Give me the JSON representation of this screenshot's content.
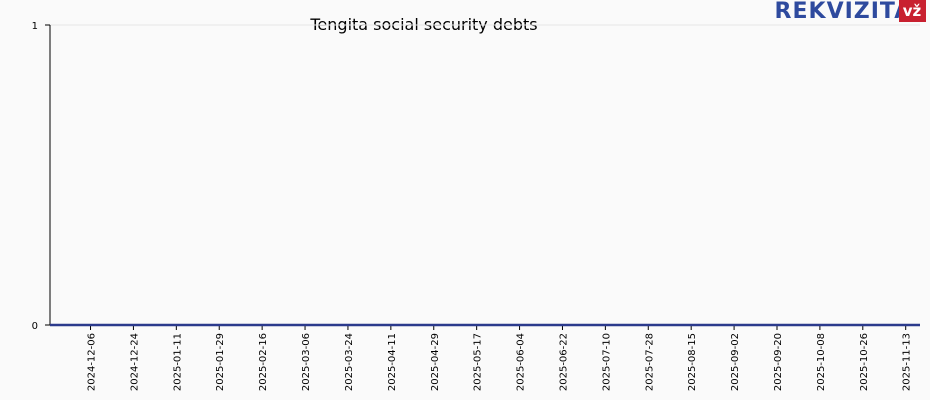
{
  "chart_data": {
    "type": "line",
    "title": "Tengita social security debts",
    "x": [
      "2024-11-19",
      "2025-11-19"
    ],
    "series": [
      {
        "color": "#2b3a8c",
        "values": [
          0,
          0
        ]
      }
    ],
    "xlim": [
      "2024-11-19",
      "2025-11-19"
    ],
    "xticks": [
      "2024-12-06",
      "2024-12-24",
      "2025-01-11",
      "2025-01-29",
      "2025-02-16",
      "2025-03-06",
      "2025-03-24",
      "2025-04-11",
      "2025-04-29",
      "2025-05-17",
      "2025-06-04",
      "2025-06-22",
      "2025-07-10",
      "2025-07-28",
      "2025-08-15",
      "2025-09-02",
      "2025-09-20",
      "2025-10-08",
      "2025-10-26",
      "2025-11-13"
    ],
    "ylim": [
      0,
      1
    ],
    "yticks": [
      0,
      1
    ],
    "grid": true
  },
  "logo": {
    "text": "REKVIZITAI",
    "badge": "vž"
  }
}
